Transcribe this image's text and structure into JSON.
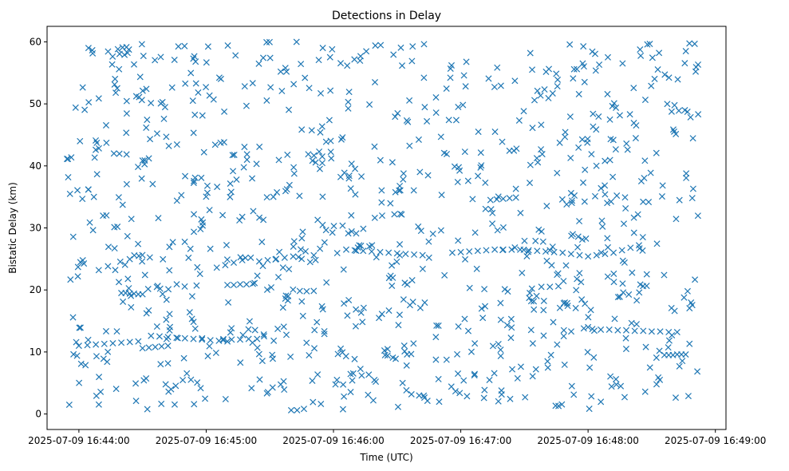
{
  "chart_data": {
    "type": "scatter",
    "title": "Detections in Delay",
    "xlabel": "Time (UTC)",
    "ylabel": "Bistatic Delay (km)",
    "marker": "x",
    "color": "#1f77b4",
    "grid": false,
    "xlim": [
      "2025-07-09 16:43:45",
      "2025-07-09 16:49:05"
    ],
    "ylim": [
      -2.5,
      62.5
    ],
    "x_ticks": [
      "2025-07-09 16:44:00",
      "2025-07-09 16:45:00",
      "2025-07-09 16:46:00",
      "2025-07-09 16:47:00",
      "2025-07-09 16:48:00",
      "2025-07-09 16:49:00"
    ],
    "y_ticks": [
      0,
      10,
      20,
      30,
      40,
      50,
      60
    ],
    "tracks": [
      {
        "x": [
          "16:44:00",
          "16:44:04",
          "16:44:08",
          "16:44:12",
          "16:44:16",
          "16:44:20",
          "16:44:24",
          "16:44:28"
        ],
        "y": [
          11.0,
          11.1,
          11.2,
          11.3,
          11.4,
          11.5,
          11.6,
          11.7
        ]
      },
      {
        "x": [
          "16:44:20",
          "16:44:22",
          "16:44:24",
          "16:44:26",
          "16:44:28",
          "16:44:30"
        ],
        "y": [
          19.5,
          19.5,
          19.4,
          19.4,
          19.3,
          19.3
        ]
      },
      {
        "x": [
          "16:44:30",
          "16:44:33",
          "16:44:36",
          "16:44:39",
          "16:44:42"
        ],
        "y": [
          10.6,
          10.7,
          10.8,
          10.9,
          11.0
        ]
      },
      {
        "x": [
          "16:44:34",
          "16:44:38",
          "16:44:42",
          "16:44:46",
          "16:44:50",
          "16:44:54",
          "16:44:58",
          "16:45:02",
          "16:45:06",
          "16:45:10"
        ],
        "y": [
          12.6,
          12.5,
          12.4,
          12.3,
          12.2,
          12.1,
          12.0,
          11.9,
          11.8,
          11.7
        ]
      },
      {
        "x": [
          "16:45:05",
          "16:45:09",
          "16:45:13",
          "16:45:17",
          "16:45:21",
          "16:45:25",
          "16:45:29",
          "16:45:33",
          "16:45:37",
          "16:45:41",
          "16:45:45",
          "16:45:49"
        ],
        "y": [
          23.6,
          24.0,
          24.4,
          24.8,
          25.2,
          24.6,
          24.8,
          25.0,
          25.2,
          25.4,
          25.0,
          24.5
        ]
      },
      {
        "x": [
          "16:45:10",
          "16:45:13",
          "16:45:16",
          "16:45:19",
          "16:45:22"
        ],
        "y": [
          20.8,
          20.8,
          20.9,
          20.9,
          21.0
        ]
      },
      {
        "x": [
          "16:45:08",
          "16:45:12",
          "16:45:16",
          "16:45:20",
          "16:45:24"
        ],
        "y": [
          11.9,
          12.0,
          12.0,
          12.1,
          12.1
        ]
      },
      {
        "x": [
          "16:46:06",
          "16:46:10",
          "16:46:14",
          "16:46:18",
          "16:46:22",
          "16:46:26",
          "16:46:30",
          "16:46:34",
          "16:46:38",
          "16:46:42"
        ],
        "y": [
          26.5,
          26.4,
          26.3,
          26.2,
          26.1,
          26.0,
          25.9,
          25.8,
          25.7,
          25.6
        ]
      },
      {
        "x": [
          "16:46:56",
          "16:47:00",
          "16:47:04",
          "16:47:08",
          "16:47:12",
          "16:47:16",
          "16:47:20",
          "16:47:24",
          "16:47:28",
          "16:47:32",
          "16:47:36",
          "16:47:40",
          "16:47:44",
          "16:47:48",
          "16:47:52",
          "16:47:56",
          "16:48:00",
          "16:48:04",
          "16:48:08",
          "16:48:12",
          "16:48:16",
          "16:48:20",
          "16:48:24"
        ],
        "y": [
          26.0,
          26.1,
          26.2,
          26.3,
          26.4,
          26.5,
          26.5,
          26.5,
          26.5,
          26.4,
          26.3,
          26.2,
          26.1,
          26.0,
          25.8,
          25.6,
          25.4,
          25.6,
          25.8,
          26.0,
          26.4,
          26.8,
          27.2
        ]
      },
      {
        "x": [
          "16:47:14",
          "16:47:17",
          "16:47:20",
          "16:47:23",
          "16:47:26"
        ],
        "y": [
          34.5,
          34.6,
          34.7,
          34.8,
          34.9
        ]
      },
      {
        "x": [
          "16:47:38",
          "16:47:42",
          "16:47:46"
        ],
        "y": [
          20.5,
          20.5,
          20.6
        ]
      },
      {
        "x": [
          "16:47:58",
          "16:48:02",
          "16:48:06",
          "16:48:10",
          "16:48:14",
          "16:48:18",
          "16:48:22",
          "16:48:26",
          "16:48:30",
          "16:48:34",
          "16:48:38",
          "16:48:42"
        ],
        "y": [
          13.8,
          13.7,
          13.6,
          13.6,
          13.5,
          13.5,
          13.4,
          13.4,
          13.3,
          13.3,
          13.2,
          13.2
        ]
      },
      {
        "x": [
          "16:48:36",
          "16:48:38",
          "16:48:40",
          "16:48:42",
          "16:48:44",
          "16:48:46"
        ],
        "y": [
          9.5,
          9.5,
          9.5,
          9.6,
          9.6,
          9.6
        ]
      }
    ],
    "clutter_points": {
      "count": 950,
      "x_range": [
        "2025-07-09 16:43:54",
        "2025-07-09 16:48:52"
      ],
      "y_range": [
        0.5,
        60
      ]
    }
  }
}
